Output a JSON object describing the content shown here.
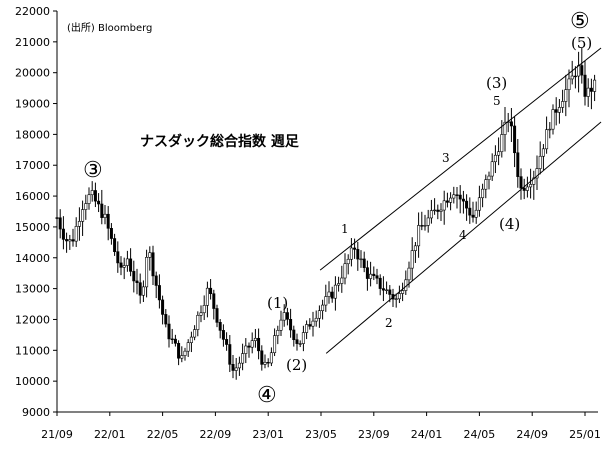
{
  "chart_data": {
    "type": "candlestick",
    "title": "ナスダック総合指数 週足",
    "source_note": "(出所) Bloomberg",
    "ylim": [
      9000,
      22000
    ],
    "y_ticks": [
      "22000",
      "21000",
      "20000",
      "19000",
      "18000",
      "17000",
      "16000",
      "15000",
      "14000",
      "13000",
      "12000",
      "11000",
      "10000",
      "9000"
    ],
    "x_ticks": [
      "21/09",
      "22/01",
      "22/05",
      "22/09",
      "23/01",
      "23/05",
      "23/09",
      "24/01",
      "24/05",
      "24/09",
      "25/01"
    ],
    "grid": false,
    "weekly_close_path": [
      {
        "x": "2021-09-01",
        "y": 15300
      },
      {
        "x": "2021-09-20",
        "y": 14600
      },
      {
        "x": "2021-10-05",
        "y": 14500
      },
      {
        "x": "2021-11-01",
        "y": 15800
      },
      {
        "x": "2021-11-19",
        "y": 16050
      },
      {
        "x": "2021-12-20",
        "y": 15300
      },
      {
        "x": "2022-01-27",
        "y": 13500
      },
      {
        "x": "2022-02-10",
        "y": 14000
      },
      {
        "x": "2022-03-14",
        "y": 12600
      },
      {
        "x": "2022-03-29",
        "y": 14400
      },
      {
        "x": "2022-05-10",
        "y": 11700
      },
      {
        "x": "2022-06-16",
        "y": 10700
      },
      {
        "x": "2022-08-16",
        "y": 13000
      },
      {
        "x": "2022-10-13",
        "y": 10300
      },
      {
        "x": "2022-11-30",
        "y": 11400
      },
      {
        "x": "2022-12-28",
        "y": 10300
      },
      {
        "x": "2023-02-02",
        "y": 12200
      },
      {
        "x": "2023-03-13",
        "y": 11200
      },
      {
        "x": "2023-04-15",
        "y": 12100
      },
      {
        "x": "2023-06-01",
        "y": 12900
      },
      {
        "x": "2023-07-19",
        "y": 14350
      },
      {
        "x": "2023-08-15",
        "y": 13500
      },
      {
        "x": "2023-10-27",
        "y": 12600
      },
      {
        "x": "2023-12-15",
        "y": 14900
      },
      {
        "x": "2024-03-05",
        "y": 16200
      },
      {
        "x": "2024-04-19",
        "y": 15300
      },
      {
        "x": "2024-07-10",
        "y": 18600
      },
      {
        "x": "2024-08-05",
        "y": 16200
      },
      {
        "x": "2024-09-06",
        "y": 16700
      },
      {
        "x": "2024-10-15",
        "y": 18500
      },
      {
        "x": "2024-12-16",
        "y": 20200
      },
      {
        "x": "2025-01-02",
        "y": 19300
      },
      {
        "x": "2025-01-24",
        "y": 19600
      }
    ],
    "channel": {
      "upper": [
        {
          "x": "2023-05-01",
          "y": 13600
        },
        {
          "x": "2025-02-07",
          "y": 20800
        }
      ],
      "lower": [
        {
          "x": "2023-05-15",
          "y": 10900
        },
        {
          "x": "2025-02-07",
          "y": 18400
        }
      ]
    },
    "annotations": {
      "w3": "③",
      "w4": "④",
      "w5": "⑤",
      "p1": "(1)",
      "p2": "(2)",
      "p3": "(3)",
      "p4": "(4)",
      "p5": "(5)",
      "s1": "1",
      "s2": "2",
      "s3": "3",
      "s4": "4",
      "s5": "5"
    }
  }
}
